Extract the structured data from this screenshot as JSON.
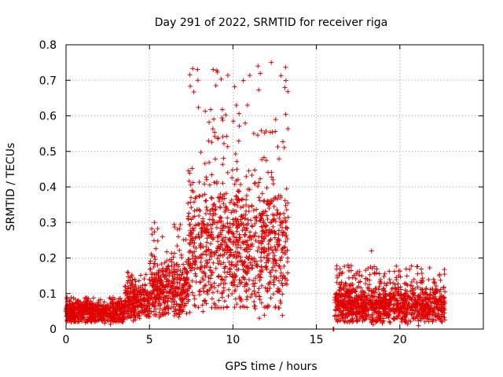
{
  "chart_data": {
    "type": "scatter",
    "title": "Day 291 of 2022, SRMTID for receiver riga",
    "xlabel": "GPS time / hours",
    "ylabel": "SRMTID / TECUs",
    "xlim": [
      0,
      25
    ],
    "ylim": [
      0,
      0.8
    ],
    "xticks": [
      0,
      5,
      10,
      15,
      20
    ],
    "xtick_labels": [
      "0",
      "5",
      "10",
      "15",
      "20"
    ],
    "yticks": [
      0,
      0.1,
      0.2,
      0.3,
      0.4,
      0.5,
      0.6,
      0.7,
      0.8
    ],
    "ytick_labels": [
      "0",
      "0.1",
      "0.2",
      "0.3",
      "0.4",
      "0.5",
      "0.6",
      "0.7",
      "0.8"
    ],
    "grid": true,
    "marker": "+",
    "marker_color": "#e00000",
    "series": [
      {
        "name": "SRMTID",
        "segments": [
          {
            "x_range": [
              0.0,
              3.5
            ],
            "typical_min": 0.02,
            "typical_max": 0.09,
            "median": 0.05
          },
          {
            "x_range": [
              3.5,
              5.0
            ],
            "typical_min": 0.03,
            "typical_max": 0.16,
            "median": 0.08
          },
          {
            "x_range": [
              5.0,
              7.3
            ],
            "typical_min": 0.04,
            "typical_max": 0.3,
            "median": 0.12
          },
          {
            "x_range": [
              7.3,
              13.3
            ],
            "typical_min": 0.06,
            "typical_max": 0.74,
            "median": 0.24
          },
          {
            "x_range": [
              16.0,
              16.05
            ],
            "typical_min": 0.0,
            "typical_max": 0.0,
            "median": 0.0
          },
          {
            "x_range": [
              16.1,
              22.7
            ],
            "typical_min": 0.02,
            "typical_max": 0.18,
            "median": 0.07
          }
        ],
        "notable_points": [
          {
            "x": 7.9,
            "y": 0.7
          },
          {
            "x": 11.5,
            "y": 0.74
          },
          {
            "x": 12.3,
            "y": 0.75
          },
          {
            "x": 18.3,
            "y": 0.22
          },
          {
            "x": 5.3,
            "y": 0.3
          }
        ],
        "gap": [
          13.3,
          16.0
        ]
      }
    ]
  }
}
